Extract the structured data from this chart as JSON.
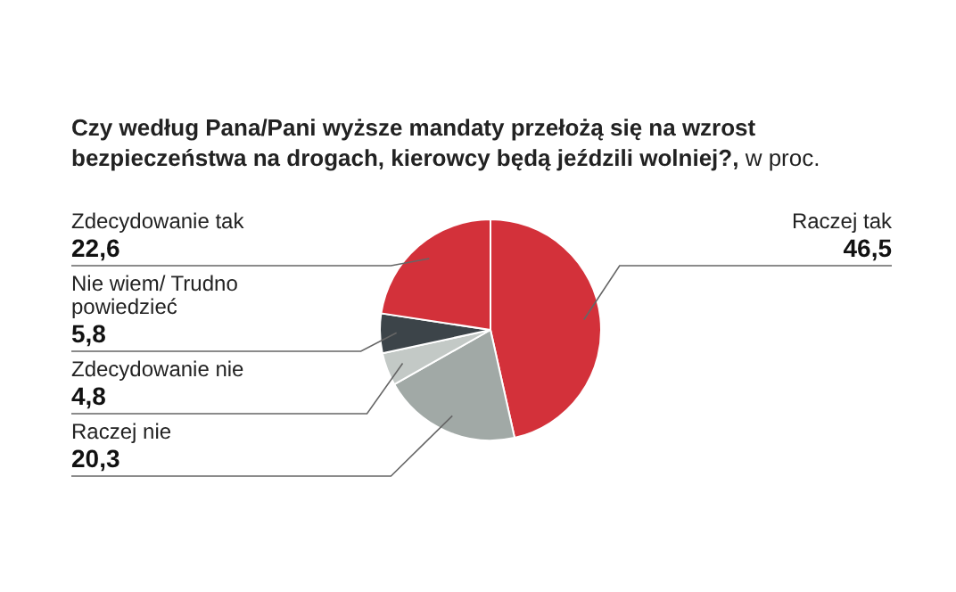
{
  "chart_data": {
    "type": "pie",
    "title": "Czy według Pana/Pani wyższe mandaty przełożą się na wzrost bezpieczeństwa na drogach, kierowcy będą jeździli wolniej?,",
    "subtitle": "w proc.",
    "categories": [
      "Raczej tak",
      "Raczej nie",
      "Zdecydowanie nie",
      "Nie wiem/ Trudno powiedzieć",
      "Zdecydowanie tak"
    ],
    "values": [
      46.5,
      20.3,
      4.8,
      5.8,
      22.6
    ],
    "value_labels": [
      "46,5",
      "20,3",
      "4,8",
      "5,8",
      "22,6"
    ],
    "colors": [
      "#d3313a",
      "#a1a9a6",
      "#c3c9c6",
      "#3c4449",
      "#d3313a"
    ]
  }
}
